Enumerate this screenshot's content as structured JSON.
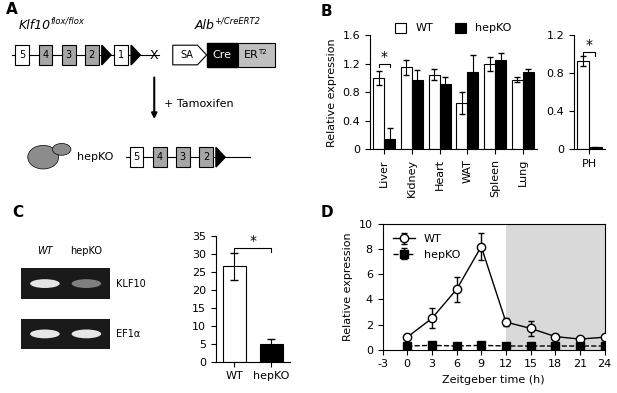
{
  "panel_labels": [
    "A",
    "B",
    "C",
    "D"
  ],
  "diagram": {
    "flox_allele": {
      "name": "Klf10",
      "sup": "flox/flox",
      "exons": [
        "5",
        "4",
        "3",
        "2",
        "1"
      ]
    },
    "cross": "X",
    "cre_allele": {
      "name": "Alb",
      "sup": "+/CreERT2",
      "parts": [
        "SA",
        "Cre",
        "ER"
      ],
      "part_sup": "T2"
    },
    "treatment": "+ Tamoxifen",
    "result": {
      "name": "hepKO",
      "exons": [
        "5",
        "4",
        "3",
        "2"
      ]
    }
  },
  "gel": {
    "lanes": [
      "WT",
      "hepKO"
    ],
    "bands": [
      "KLF10",
      "EF1α"
    ]
  },
  "chart_data": [
    {
      "type": "bar",
      "ylabel": "Relative expression",
      "categories": [
        "Liver",
        "Kidney",
        "Heart",
        "WAT",
        "Spleen",
        "Lung"
      ],
      "ylim": [
        0,
        1.6
      ],
      "yticks": [
        0,
        0.4,
        0.8,
        1.2,
        1.6
      ],
      "legend": "upper center",
      "series": [
        {
          "name": "WT",
          "color": "#ffffff",
          "values": [
            1.0,
            1.15,
            1.05,
            0.65,
            1.2,
            0.98
          ],
          "errors": [
            0.1,
            0.1,
            0.08,
            0.15,
            0.1,
            0.03
          ]
        },
        {
          "name": "hepKO",
          "color": "#000000",
          "values": [
            0.15,
            0.97,
            0.92,
            1.08,
            1.25,
            1.08
          ],
          "errors": [
            0.15,
            0.15,
            0.1,
            0.25,
            0.1,
            0.05
          ]
        }
      ],
      "annotations": [
        {
          "text": "*",
          "x": "Liver",
          "y": 1.2
        }
      ]
    },
    {
      "type": "bar",
      "categories": [
        "PH"
      ],
      "ylim": [
        0,
        1.2
      ],
      "yticks": [
        0,
        0.4,
        0.8,
        1.2
      ],
      "series": [
        {
          "color": "#ffffff",
          "values": [
            0.93
          ],
          "errors": [
            0.05
          ]
        },
        {
          "color": "#000000",
          "values": [
            0.02
          ],
          "errors": [
            0.005
          ]
        }
      ],
      "annotations": [
        {
          "text": "*",
          "x": "PH",
          "y": 1.02
        }
      ]
    },
    {
      "type": "bar",
      "categories": [
        "WT",
        "hepKO"
      ],
      "values": [
        26.5,
        5.0
      ],
      "errors": [
        3.8,
        1.2
      ],
      "colors": [
        "#ffffff",
        "#000000"
      ],
      "ylim": [
        0,
        35
      ],
      "yticks": [
        0,
        5,
        10,
        15,
        20,
        25,
        30,
        35
      ],
      "annotations": [
        {
          "text": "*",
          "between": [
            "WT",
            "hepKO"
          ],
          "y": 31.5
        }
      ]
    },
    {
      "type": "line",
      "xlabel": "Zeitgeber time (h)",
      "ylabel": "Relative expression",
      "x": [
        0,
        3,
        6,
        9,
        12,
        15,
        18,
        21,
        24
      ],
      "xlim": [
        -3,
        24
      ],
      "xticks": [
        -3,
        0,
        3,
        6,
        9,
        12,
        15,
        18,
        21,
        24
      ],
      "ylim": [
        0,
        10
      ],
      "yticks": [
        0,
        2,
        4,
        6,
        8,
        10
      ],
      "legend": "upper left",
      "shaded_x": [
        12,
        24
      ],
      "series": [
        {
          "name": "WT",
          "color": "#000000",
          "marker": "open_circle",
          "line_style": "solid",
          "values": [
            1.0,
            2.5,
            4.8,
            8.2,
            2.2,
            1.7,
            1.05,
            0.85,
            1.0
          ],
          "errors": [
            0.0,
            0.8,
            1.0,
            1.1,
            0.3,
            0.6,
            0.2,
            0.2,
            0.1
          ]
        },
        {
          "name": "hepKO",
          "color": "#000000",
          "marker": "filled_square",
          "line_style": "dashed",
          "values": [
            0.3,
            0.35,
            0.3,
            0.35,
            0.3,
            0.3,
            0.3,
            0.3,
            0.3
          ],
          "errors": [
            0.05,
            0.05,
            0.05,
            0.05,
            0.05,
            0.05,
            0.05,
            0.05,
            0.05
          ]
        }
      ]
    }
  ]
}
